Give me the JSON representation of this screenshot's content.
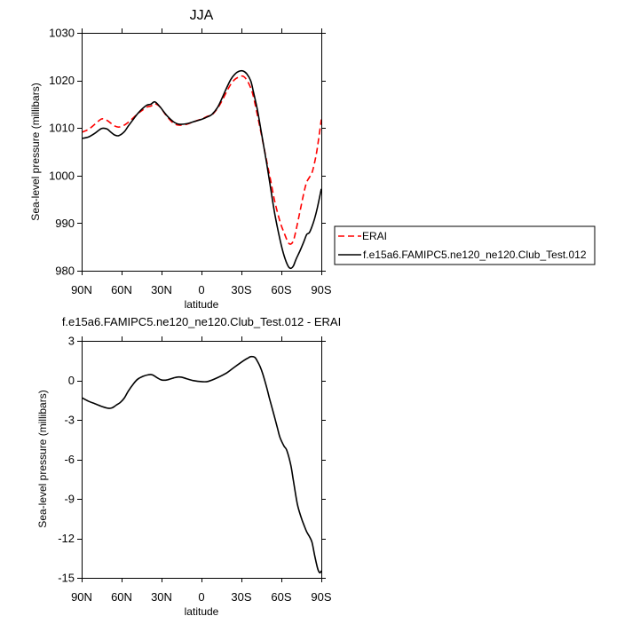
{
  "chart_data": [
    {
      "type": "line",
      "title": "JJA",
      "xlabel": "latitude",
      "ylabel": "Sea-level pressure (millibars)",
      "xlim": [
        90,
        -90
      ],
      "ylim": [
        980,
        1030
      ],
      "xticks": [
        90,
        60,
        30,
        0,
        -30,
        -60,
        -90
      ],
      "xtick_labels": [
        "90N",
        "60N",
        "30N",
        "0",
        "30S",
        "60S",
        "90S"
      ],
      "yticks": [
        980,
        990,
        1000,
        1010,
        1020,
        1030
      ],
      "grid": false,
      "x": [
        90,
        85,
        80,
        75,
        71,
        68,
        65,
        62,
        58,
        55,
        51,
        48,
        45,
        41,
        38,
        35,
        31,
        28,
        25,
        21,
        17,
        11,
        5,
        0,
        -5,
        -8,
        -12,
        -15,
        -19,
        -22,
        -25,
        -28,
        -31,
        -34,
        -37,
        -39,
        -42,
        -45,
        -49,
        -52,
        -55,
        -59,
        -62,
        -65,
        -67,
        -69,
        -71,
        -74,
        -77,
        -79,
        -81,
        -83,
        -85,
        -87,
        -90
      ],
      "series": [
        {
          "name": "ERAI",
          "color": "#ff0000",
          "dashed": true,
          "values": [
            1009.1,
            1009.7,
            1010.8,
            1011.9,
            1011.6,
            1011.0,
            1010.4,
            1010.2,
            1010.6,
            1011.2,
            1012.2,
            1013.0,
            1013.6,
            1014.4,
            1014.6,
            1015.1,
            1014.4,
            1013.2,
            1012.1,
            1011.0,
            1010.6,
            1010.8,
            1011.4,
            1011.9,
            1012.5,
            1012.8,
            1014.1,
            1015.5,
            1017.7,
            1019.2,
            1020.2,
            1020.7,
            1020.9,
            1020.1,
            1018.4,
            1016.6,
            1012.7,
            1008.6,
            1003.0,
            998.9,
            994.6,
            990.3,
            988.0,
            986.0,
            985.6,
            986.3,
            988.5,
            992.5,
            996.5,
            998.6,
            999.6,
            1000.6,
            1002.8,
            1005.8,
            1011.8
          ]
        },
        {
          "name": "f.e15a6.FAMIPC5.ne120_ne120.Club_Test.012",
          "color": "#000000",
          "dashed": false,
          "values": [
            1007.8,
            1008.1,
            1008.9,
            1009.9,
            1009.8,
            1009.1,
            1008.5,
            1008.4,
            1009.2,
            1010.4,
            1011.9,
            1013.0,
            1013.9,
            1014.8,
            1015.0,
            1015.5,
            1014.4,
            1013.3,
            1012.3,
            1011.3,
            1010.8,
            1010.9,
            1011.4,
            1011.8,
            1012.4,
            1012.9,
            1014.3,
            1016.0,
            1018.5,
            1020.2,
            1021.3,
            1021.9,
            1022.0,
            1021.4,
            1019.9,
            1017.6,
            1013.8,
            1009.0,
            1002.5,
            997.2,
            992.0,
            986.5,
            983.2,
            981.0,
            980.5,
            981.0,
            982.4,
            984.2,
            986.2,
            987.6,
            988.0,
            989.3,
            991.0,
            993.2,
            997.2
          ]
        }
      ]
    },
    {
      "type": "line",
      "title": "f.e15a6.FAMIPC5.ne120_ne120.Club_Test.012 - ERAI",
      "xlabel": "latitude",
      "ylabel": "Sea-level pressure (millibars)",
      "xlim": [
        90,
        -90
      ],
      "ylim": [
        -15,
        3
      ],
      "xticks": [
        90,
        60,
        30,
        0,
        -30,
        -60,
        -90
      ],
      "xtick_labels": [
        "90N",
        "60N",
        "30N",
        "0",
        "30S",
        "60S",
        "90S"
      ],
      "yticks": [
        -15,
        -12,
        -9,
        -6,
        -3,
        0,
        3
      ],
      "grid": false,
      "x": [
        90,
        85,
        80,
        75,
        70,
        67,
        64,
        61,
        58,
        55,
        51,
        48,
        44,
        40,
        37,
        33,
        30,
        26,
        21,
        18,
        15,
        11,
        6,
        0,
        -5,
        -12,
        -19,
        -25,
        -32,
        -35,
        -37,
        -40,
        -42,
        -44,
        -46,
        -49,
        -51,
        -54,
        -57,
        -59,
        -62,
        -64,
        -67,
        -69,
        -72,
        -75,
        -77,
        -79,
        -81,
        -83,
        -85,
        -87,
        -88,
        -89,
        -90
      ],
      "series": [
        {
          "color": "#000000",
          "dashed": false,
          "values": [
            -1.31,
            -1.58,
            -1.78,
            -1.98,
            -2.12,
            -2.08,
            -1.88,
            -1.68,
            -1.35,
            -0.82,
            -0.25,
            0.08,
            0.3,
            0.42,
            0.42,
            0.18,
            0.03,
            0.03,
            0.18,
            0.25,
            0.24,
            0.12,
            -0.02,
            -0.1,
            -0.08,
            0.2,
            0.57,
            1.02,
            1.52,
            1.7,
            1.8,
            1.75,
            1.45,
            1.05,
            0.5,
            -0.55,
            -1.35,
            -2.46,
            -3.6,
            -4.35,
            -5.0,
            -5.3,
            -6.4,
            -7.6,
            -9.4,
            -10.45,
            -11.0,
            -11.5,
            -11.85,
            -12.3,
            -13.3,
            -14.2,
            -14.5,
            -14.62,
            -14.46
          ]
        }
      ]
    }
  ]
}
